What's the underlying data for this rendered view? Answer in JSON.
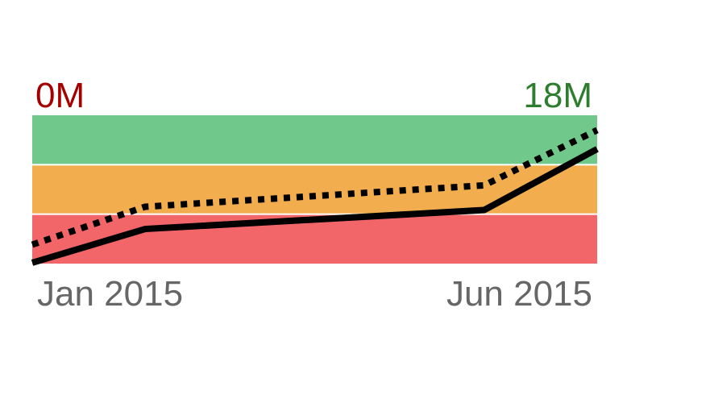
{
  "colors": {
    "good": "#70c98b",
    "satisfactory": "#f2ae4e",
    "poor": "#f26568",
    "min_label": "#a50000",
    "max_label": "#2e7d2e",
    "line": "#000000"
  },
  "chart_data": {
    "type": "line",
    "labels": {
      "min": "0M",
      "max": "18M"
    },
    "x_ticks": [
      "Jan 2015",
      "Jun 2015"
    ],
    "xlim": [
      "2015-01",
      "2015-06"
    ],
    "ylim": [
      0,
      18
    ],
    "bands": [
      {
        "from": 0,
        "to": 6,
        "color": "#f26568"
      },
      {
        "from": 6,
        "to": 12,
        "color": "#f2ae4e"
      },
      {
        "from": 12,
        "to": 18,
        "color": "#70c98b"
      }
    ],
    "series": [
      {
        "style": "solid",
        "points": [
          {
            "x": "2015-01",
            "y": 0.1
          },
          {
            "x": "2015-02",
            "y": 4.2
          },
          {
            "x": "2015-05",
            "y": 6.5
          },
          {
            "x": "2015-06",
            "y": 13.9
          }
        ]
      },
      {
        "style": "dotted",
        "points": [
          {
            "x": "2015-01",
            "y": 2.3
          },
          {
            "x": "2015-02",
            "y": 6.9
          },
          {
            "x": "2015-05",
            "y": 9.5
          },
          {
            "x": "2015-06",
            "y": 16.2
          }
        ]
      }
    ]
  }
}
